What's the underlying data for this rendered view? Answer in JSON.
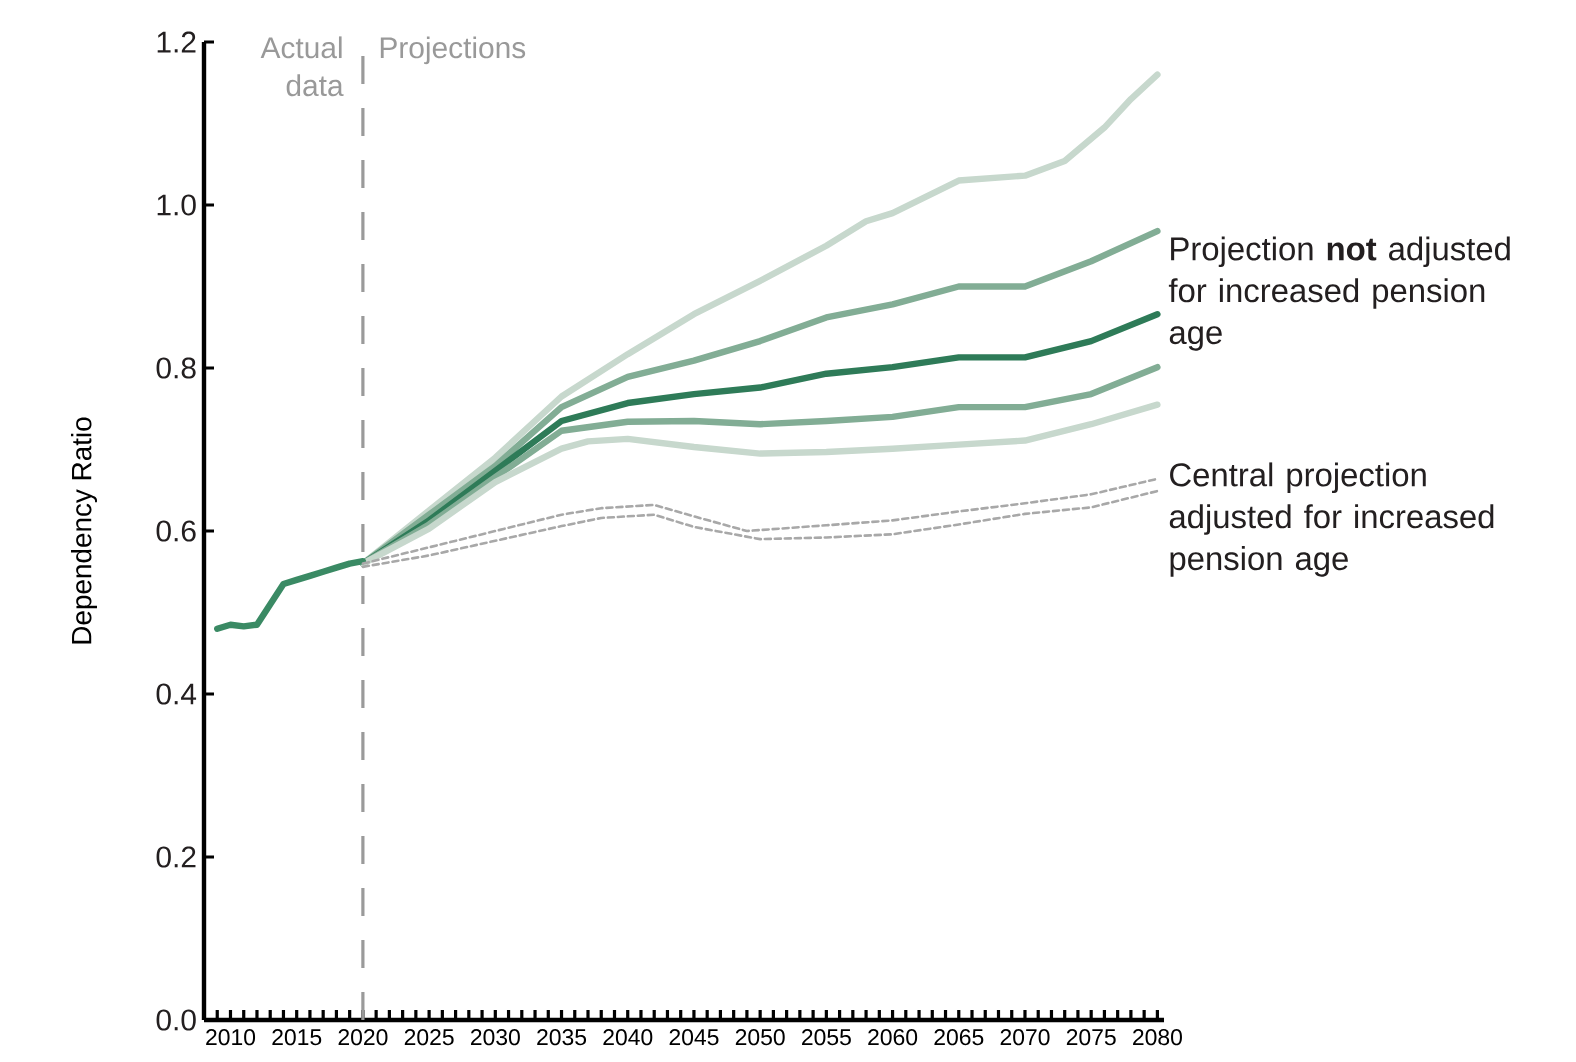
{
  "chart_data": {
    "type": "line",
    "ylabel": "Dependency Ratio",
    "xlim": [
      2008,
      2080.5
    ],
    "ylim": [
      0,
      1.2
    ],
    "xticks": [
      {
        "value": 2009,
        "label": null
      },
      2010,
      {
        "value": 2011,
        "label": null
      },
      {
        "value": 2012,
        "label": null
      },
      {
        "value": 2013,
        "label": null
      },
      {
        "value": 2014,
        "label": null
      },
      2015,
      {
        "value": 2016,
        "label": null
      },
      {
        "value": 2017,
        "label": null
      },
      {
        "value": 2018,
        "label": null
      },
      {
        "value": 2019,
        "label": null
      },
      2020,
      {
        "value": 2021,
        "label": null
      },
      {
        "value": 2022,
        "label": null
      },
      {
        "value": 2023,
        "label": null
      },
      {
        "value": 2024,
        "label": null
      },
      2025,
      {
        "value": 2026,
        "label": null
      },
      {
        "value": 2027,
        "label": null
      },
      {
        "value": 2028,
        "label": null
      },
      {
        "value": 2029,
        "label": null
      },
      2030,
      {
        "value": 2031,
        "label": null
      },
      {
        "value": 2032,
        "label": null
      },
      {
        "value": 2033,
        "label": null
      },
      {
        "value": 2034,
        "label": null
      },
      2035,
      {
        "value": 2036,
        "label": null
      },
      {
        "value": 2037,
        "label": null
      },
      {
        "value": 2038,
        "label": null
      },
      {
        "value": 2039,
        "label": null
      },
      2040,
      {
        "value": 2041,
        "label": null
      },
      {
        "value": 2042,
        "label": null
      },
      {
        "value": 2043,
        "label": null
      },
      {
        "value": 2044,
        "label": null
      },
      2045,
      {
        "value": 2046,
        "label": null
      },
      {
        "value": 2047,
        "label": null
      },
      {
        "value": 2048,
        "label": null
      },
      {
        "value": 2049,
        "label": null
      },
      2050,
      {
        "value": 2051,
        "label": null
      },
      {
        "value": 2052,
        "label": null
      },
      {
        "value": 2053,
        "label": null
      },
      {
        "value": 2054,
        "label": null
      },
      2055,
      {
        "value": 2056,
        "label": null
      },
      {
        "value": 2057,
        "label": null
      },
      {
        "value": 2058,
        "label": null
      },
      {
        "value": 2059,
        "label": null
      },
      2060,
      {
        "value": 2061,
        "label": null
      },
      {
        "value": 2062,
        "label": null
      },
      {
        "value": 2063,
        "label": null
      },
      {
        "value": 2064,
        "label": null
      },
      2065,
      {
        "value": 2066,
        "label": null
      },
      {
        "value": 2067,
        "label": null
      },
      {
        "value": 2068,
        "label": null
      },
      {
        "value": 2069,
        "label": null
      },
      2070,
      {
        "value": 2071,
        "label": null
      },
      {
        "value": 2072,
        "label": null
      },
      {
        "value": 2073,
        "label": null
      },
      {
        "value": 2074,
        "label": null
      },
      2075,
      {
        "value": 2076,
        "label": null
      },
      {
        "value": 2077,
        "label": null
      },
      {
        "value": 2078,
        "label": null
      },
      {
        "value": 2079,
        "label": null
      },
      2080
    ],
    "yticks": [
      {
        "value": 0,
        "label": "0.0"
      },
      0.2,
      0.4,
      0.6,
      0.8,
      {
        "value": 1,
        "label": "1.0"
      },
      1.2
    ],
    "grid": false,
    "line_style": "solid",
    "series": [
      {
        "color": "#c7d8cd",
        "x": [
          2020,
          2025,
          2030,
          2035,
          2040,
          2045,
          2050,
          2055,
          2058,
          2060,
          2065,
          2070,
          2073,
          2076,
          2078,
          2080
        ],
        "values": [
          0.56,
          0.625,
          0.69,
          0.765,
          0.817,
          0.866,
          0.907,
          0.95,
          0.98,
          0.99,
          1.03,
          1.036,
          1.054,
          1.095,
          1.13,
          1.16
        ]
      },
      {
        "color": "#82ad95",
        "x": [
          2020,
          2025,
          2030,
          2035,
          2040,
          2045,
          2050,
          2055,
          2060,
          2065,
          2070,
          2075,
          2080
        ],
        "values": [
          0.56,
          0.62,
          0.68,
          0.752,
          0.789,
          0.809,
          0.833,
          0.862,
          0.878,
          0.9,
          0.9,
          0.931,
          0.968
        ]
      },
      {
        "color": "#2e7b58",
        "x": [
          2020,
          2025,
          2030,
          2035,
          2040,
          2045,
          2050,
          2055,
          2060,
          2065,
          2070,
          2075,
          2080
        ],
        "values": [
          0.56,
          0.613,
          0.674,
          0.735,
          0.757,
          0.768,
          0.776,
          0.793,
          0.801,
          0.813,
          0.813,
          0.833,
          0.866
        ]
      },
      {
        "color": "#82ad95",
        "x": [
          2020,
          2025,
          2030,
          2035,
          2040,
          2045,
          2050,
          2055,
          2060,
          2065,
          2070,
          2075,
          2080
        ],
        "values": [
          0.56,
          0.608,
          0.666,
          0.723,
          0.734,
          0.735,
          0.731,
          0.735,
          0.74,
          0.752,
          0.752,
          0.768,
          0.801
        ]
      },
      {
        "color": "#c7d8cd",
        "x": [
          2020,
          2025,
          2030,
          2035,
          2037,
          2040,
          2045,
          2050,
          2055,
          2060,
          2065,
          2070,
          2075,
          2080
        ],
        "values": [
          0.56,
          0.603,
          0.66,
          0.701,
          0.71,
          0.713,
          0.703,
          0.695,
          0.697,
          0.701,
          0.706,
          0.711,
          0.731,
          0.755
        ]
      },
      {
        "color": "#3a8a64",
        "x": [
          2009,
          2010,
          2011,
          2012,
          2013,
          2014,
          2015,
          2016,
          2017,
          2018,
          2019,
          2020
        ],
        "values": [
          0.48,
          0.485,
          0.483,
          0.485,
          0.51,
          0.535,
          0.54,
          0.545,
          0.55,
          0.555,
          0.56,
          0.563
        ]
      },
      {
        "color": "#a8a8a8",
        "line_style": "dashed",
        "x": [
          2020,
          2025,
          2030,
          2035,
          2038,
          2042,
          2045,
          2049,
          2055,
          2060,
          2065,
          2070,
          2075,
          2080
        ],
        "values": [
          0.56,
          0.58,
          0.6,
          0.62,
          0.628,
          0.632,
          0.618,
          0.6,
          0.607,
          0.613,
          0.624,
          0.634,
          0.645,
          0.664
        ]
      },
      {
        "color": "#a8a8a8",
        "line_style": "dashed",
        "x": [
          2020,
          2025,
          2030,
          2035,
          2038,
          2042,
          2045,
          2050,
          2055,
          2060,
          2065,
          2070,
          2075,
          2080
        ],
        "values": [
          0.556,
          0.57,
          0.588,
          0.606,
          0.616,
          0.62,
          0.605,
          0.59,
          0.592,
          0.596,
          0.608,
          0.621,
          0.629,
          0.649
        ]
      }
    ],
    "ref_lines": [
      {
        "axis": "x",
        "value": 2020,
        "color": "#9a9a9a",
        "line_style": "dashed"
      }
    ],
    "annotations": [
      "Actual data",
      "Projections",
      "Projection **not** adjusted for increased pension age",
      "Central projection adjusted for increased pension age"
    ]
  }
}
